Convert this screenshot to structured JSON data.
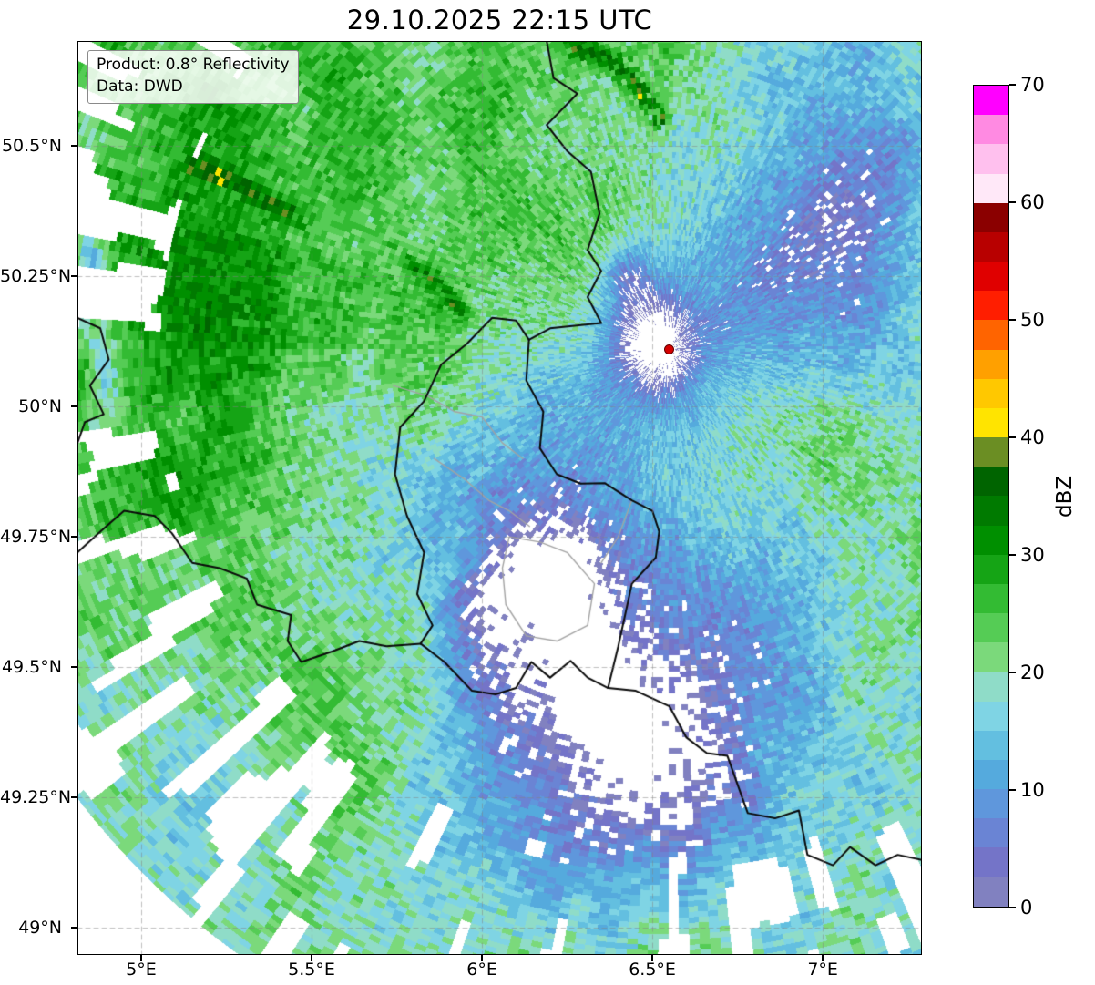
{
  "title": "29.10.2025 22:15 UTC",
  "info_box": {
    "product_line": "Product: 0.8° Reflectivity",
    "data_line": "Data: DWD"
  },
  "chart_data": {
    "type": "heatmap",
    "title": "29.10.2025 22:15 UTC",
    "product": "0.8° Reflectivity",
    "source": "DWD",
    "x_axis": {
      "tick_labels": [
        "5°E",
        "5.5°E",
        "6°E",
        "6.5°E",
        "7°E"
      ],
      "tick_values": [
        5,
        5.5,
        6,
        6.5,
        7
      ],
      "range": [
        4.813,
        7.291
      ]
    },
    "y_axis": {
      "tick_labels": [
        "49°N",
        "49.25°N",
        "49.5°N",
        "49.75°N",
        "50°N",
        "50.25°N",
        "50.5°N"
      ],
      "tick_values": [
        49,
        49.25,
        49.5,
        49.75,
        50,
        50.25,
        50.5
      ],
      "range": [
        48.948,
        50.701
      ]
    },
    "grid": {
      "visible": true,
      "style": "dashed"
    },
    "colorbar": {
      "label": "dBZ",
      "min": 0,
      "max": 70,
      "step": 2.5,
      "tick_values": [
        0,
        10,
        20,
        30,
        40,
        50,
        60,
        70
      ],
      "colors": [
        "#8181c0",
        "#7474c8",
        "#6a84d4",
        "#5f97dc",
        "#55aadd",
        "#63bfe0",
        "#7fd4e4",
        "#8fdcc8",
        "#7bd97b",
        "#55cc55",
        "#33bb33",
        "#15a415",
        "#008f00",
        "#007a00",
        "#006400",
        "#6b8e23",
        "#ffe400",
        "#ffc800",
        "#ffa000",
        "#ff6400",
        "#ff1e00",
        "#e00000",
        "#b80000",
        "#8b0000",
        "#ffe8f8",
        "#ffc0ee",
        "#ff8ae2",
        "#ff00ff"
      ]
    },
    "radar_site_marker": {
      "lon": 6.548,
      "lat": 50.11,
      "color": "#d40000"
    },
    "borders_black": [
      [
        [
          4.813,
          50.17
        ],
        [
          4.88,
          50.15
        ],
        [
          4.905,
          50.09
        ],
        [
          4.85,
          50.04
        ],
        [
          4.89,
          49.985
        ],
        [
          4.835,
          49.97
        ],
        [
          4.813,
          49.93
        ]
      ],
      [
        [
          6.19,
          50.701
        ],
        [
          6.21,
          50.63
        ],
        [
          6.28,
          50.6
        ],
        [
          6.19,
          50.54
        ],
        [
          6.25,
          50.49
        ],
        [
          6.32,
          50.45
        ],
        [
          6.345,
          50.37
        ],
        [
          6.31,
          50.3
        ],
        [
          6.35,
          50.26
        ],
        [
          6.31,
          50.21
        ],
        [
          6.35,
          50.16
        ],
        [
          6.2,
          50.15
        ],
        [
          6.138,
          50.128
        ]
      ],
      [
        [
          6.138,
          50.128
        ],
        [
          6.1,
          50.165
        ],
        [
          6.03,
          50.17
        ],
        [
          5.955,
          50.12
        ],
        [
          5.88,
          50.08
        ],
        [
          5.83,
          50.01
        ],
        [
          5.76,
          49.96
        ],
        [
          5.745,
          49.87
        ],
        [
          5.78,
          49.79
        ],
        [
          5.83,
          49.72
        ],
        [
          5.81,
          49.64
        ],
        [
          5.855,
          49.58
        ],
        [
          5.82,
          49.545
        ]
      ],
      [
        [
          5.82,
          49.545
        ],
        [
          5.89,
          49.51
        ],
        [
          5.97,
          49.455
        ],
        [
          6.04,
          49.448
        ],
        [
          6.1,
          49.46
        ],
        [
          6.145,
          49.51
        ],
        [
          6.2,
          49.48
        ],
        [
          6.26,
          49.512
        ],
        [
          6.31,
          49.48
        ],
        [
          6.37,
          49.46
        ]
      ],
      [
        [
          6.138,
          50.128
        ],
        [
          6.13,
          50.05
        ],
        [
          6.18,
          49.99
        ],
        [
          6.17,
          49.92
        ],
        [
          6.22,
          49.87
        ],
        [
          6.29,
          49.852
        ],
        [
          6.36,
          49.853
        ],
        [
          6.44,
          49.82
        ],
        [
          6.5,
          49.8
        ],
        [
          6.52,
          49.76
        ],
        [
          6.51,
          49.71
        ],
        [
          6.44,
          49.66
        ],
        [
          6.42,
          49.6
        ],
        [
          6.4,
          49.54
        ],
        [
          6.37,
          49.46
        ]
      ],
      [
        [
          4.813,
          49.72
        ],
        [
          4.88,
          49.76
        ],
        [
          4.95,
          49.8
        ],
        [
          5.04,
          49.79
        ],
        [
          5.09,
          49.757
        ],
        [
          5.15,
          49.7
        ],
        [
          5.23,
          49.69
        ],
        [
          5.31,
          49.67
        ],
        [
          5.34,
          49.62
        ],
        [
          5.44,
          49.6
        ],
        [
          5.43,
          49.55
        ],
        [
          5.47,
          49.51
        ],
        [
          5.56,
          49.53
        ],
        [
          5.64,
          49.55
        ],
        [
          5.72,
          49.54
        ],
        [
          5.82,
          49.545
        ]
      ],
      [
        [
          6.37,
          49.46
        ],
        [
          6.45,
          49.455
        ],
        [
          6.55,
          49.425
        ],
        [
          6.6,
          49.365
        ],
        [
          6.66,
          49.335
        ],
        [
          6.72,
          49.33
        ],
        [
          6.78,
          49.22
        ],
        [
          6.86,
          49.21
        ],
        [
          6.93,
          49.225
        ],
        [
          6.955,
          49.14
        ],
        [
          7.03,
          49.12
        ],
        [
          7.08,
          49.155
        ],
        [
          7.155,
          49.12
        ],
        [
          7.22,
          49.14
        ],
        [
          7.291,
          49.13
        ]
      ]
    ],
    "borders_gray": [
      [
        [
          5.74,
          50.04
        ],
        [
          5.84,
          50.02
        ],
        [
          5.92,
          49.99
        ],
        [
          6.0,
          49.98
        ],
        [
          6.06,
          49.93
        ],
        [
          6.12,
          49.9
        ]
      ],
      [
        [
          5.86,
          49.9
        ],
        [
          5.95,
          49.86
        ],
        [
          6.02,
          49.82
        ],
        [
          6.08,
          49.8
        ],
        [
          6.14,
          49.77
        ]
      ],
      [
        [
          6.08,
          49.75
        ],
        [
          6.17,
          49.74
        ],
        [
          6.25,
          49.72
        ],
        [
          6.33,
          49.66
        ],
        [
          6.31,
          49.58
        ],
        [
          6.22,
          49.55
        ],
        [
          6.13,
          49.56
        ],
        [
          6.07,
          49.62
        ],
        [
          6.06,
          49.69
        ],
        [
          6.08,
          49.75
        ]
      ],
      [
        [
          6.44,
          49.82
        ],
        [
          6.4,
          49.75
        ],
        [
          6.35,
          49.7
        ]
      ]
    ]
  }
}
